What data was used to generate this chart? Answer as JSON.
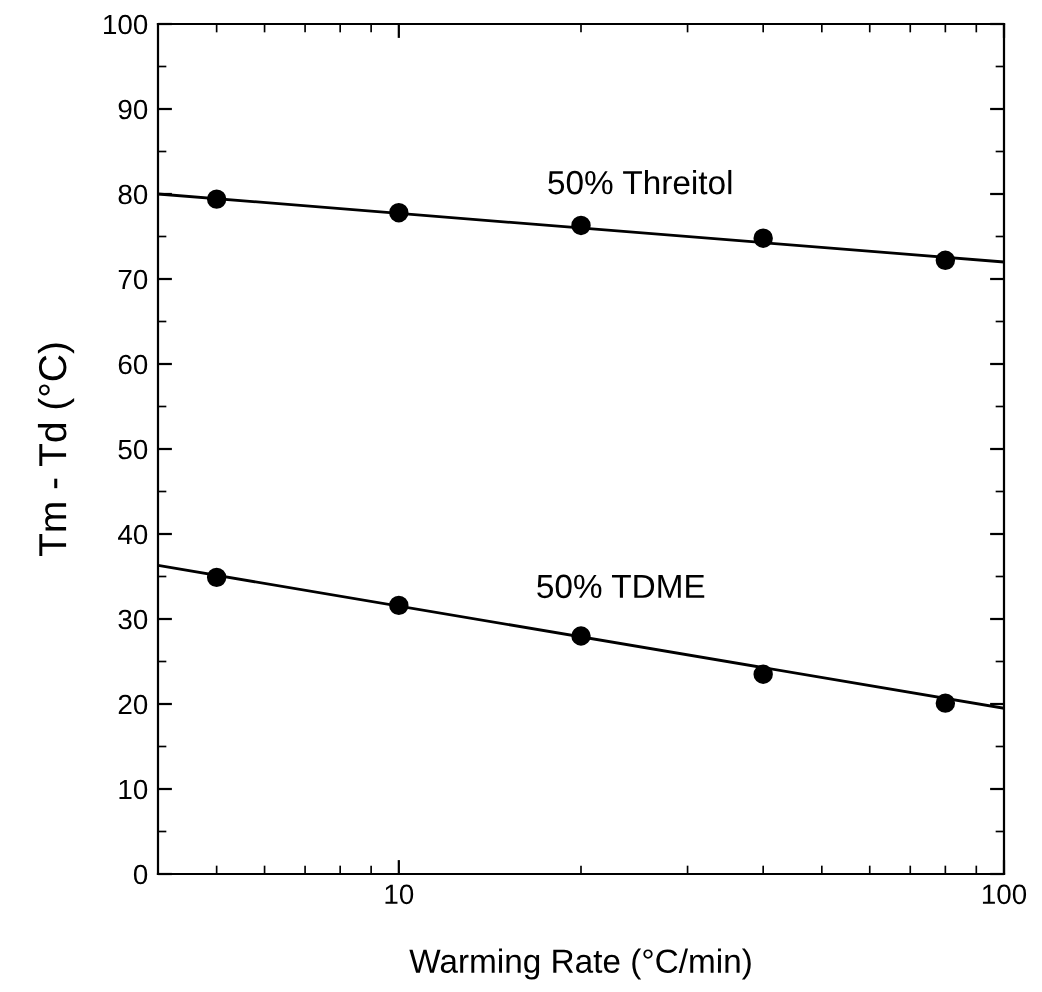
{
  "chart_data": {
    "type": "scatter",
    "xlabel": "Warming Rate (°C/min)",
    "ylabel": "Tm - Td (°C)",
    "log": "x",
    "xlim": [
      4,
      100
    ],
    "xticks": [
      10,
      100
    ],
    "ylim": [
      0,
      100
    ],
    "yticks": [
      0,
      10,
      20,
      30,
      40,
      50,
      60,
      70,
      80,
      90,
      100
    ],
    "grid": false,
    "marker": "circle",
    "series": [
      {
        "color": "#000000",
        "x": [
          5,
          10,
          20,
          40,
          80
        ],
        "values": [
          79.4,
          77.8,
          76.3,
          74.8,
          72.2
        ]
      },
      {
        "color": "#000000",
        "x": [
          5,
          10,
          20,
          40,
          80
        ],
        "values": [
          34.9,
          31.6,
          28.0,
          23.5,
          20.1
        ]
      },
      {
        "type": "line",
        "marker": "none",
        "color": "#000000",
        "line_style": "solid",
        "x": [
          4,
          100
        ],
        "values": [
          80.0,
          72.0
        ]
      },
      {
        "type": "line",
        "marker": "none",
        "color": "#000000",
        "line_style": "solid",
        "x": [
          4,
          100
        ],
        "values": [
          36.3,
          19.5
        ]
      }
    ],
    "annotations": [
      "50% Threitol",
      "50% TDME"
    ]
  }
}
